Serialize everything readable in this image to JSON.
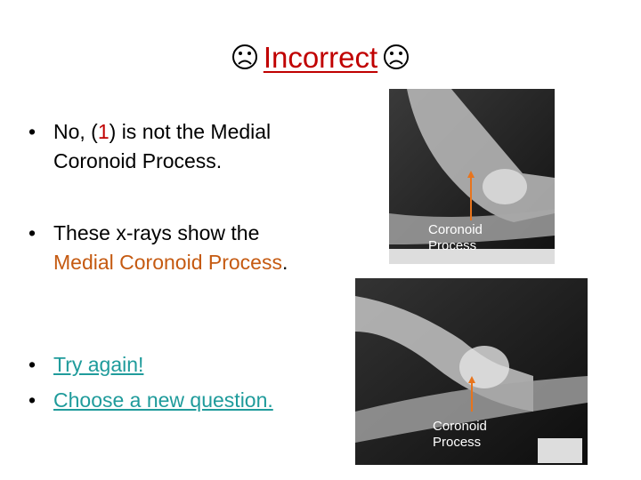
{
  "title": "Incorrect",
  "bullets": [
    {
      "before": "No, (",
      "number": "1",
      "after": ") is not the Medial Coronoid Process."
    },
    {
      "before": "These x-rays show the ",
      "highlight": "Medial Coronoid Process",
      "after": "."
    }
  ],
  "links": [
    "Try again!",
    "Choose a new question."
  ],
  "images": [
    {
      "label": "Coronoid Process"
    },
    {
      "label": "Coronoid Process"
    }
  ]
}
